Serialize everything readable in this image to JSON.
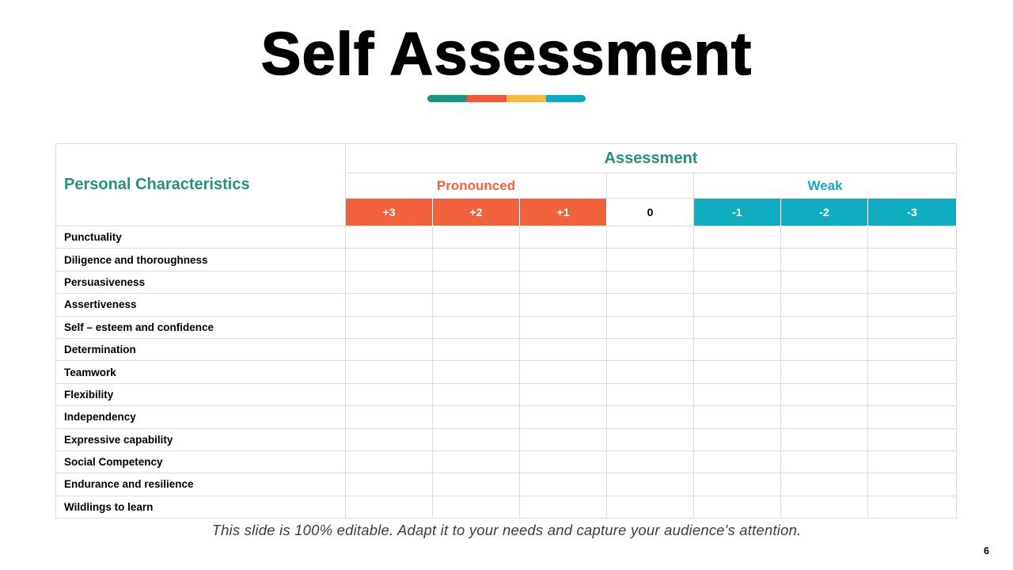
{
  "slide": {
    "title": "Self Assessment",
    "footer": "This slide is 100% editable. Adapt it to your needs and capture your audience's attention.",
    "page_number": "6",
    "divider_colors": [
      "#1f9183",
      "#ee5a3b",
      "#f7b845",
      "#12a7c0"
    ]
  },
  "table": {
    "corner_header": "Personal Characteristics",
    "group_header": "Assessment",
    "positive_group_label": "Pronounced",
    "neutral_group_label": "",
    "negative_group_label": "Weak",
    "scale": [
      {
        "label": "+3",
        "tone": "positive"
      },
      {
        "label": "+2",
        "tone": "positive"
      },
      {
        "label": "+1",
        "tone": "positive"
      },
      {
        "label": "0",
        "tone": "neutral"
      },
      {
        "label": "-1",
        "tone": "negative"
      },
      {
        "label": "-2",
        "tone": "negative"
      },
      {
        "label": "-3",
        "tone": "negative"
      }
    ],
    "rows": [
      "Punctuality",
      "Diligence and thoroughness",
      "Persuasiveness",
      "Assertiveness",
      "Self – esteem and confidence",
      "Determination",
      "Teamwork",
      "Flexibility",
      "Independency",
      "Expressive capability",
      "Social Competency",
      "Endurance and resilience",
      "Wildlings to learn"
    ]
  },
  "colors": {
    "teal": "#249180",
    "orange": "#f0613c",
    "cyan": "#10adc2",
    "yellow": "#f7b845",
    "border": "#dcdcdc"
  }
}
